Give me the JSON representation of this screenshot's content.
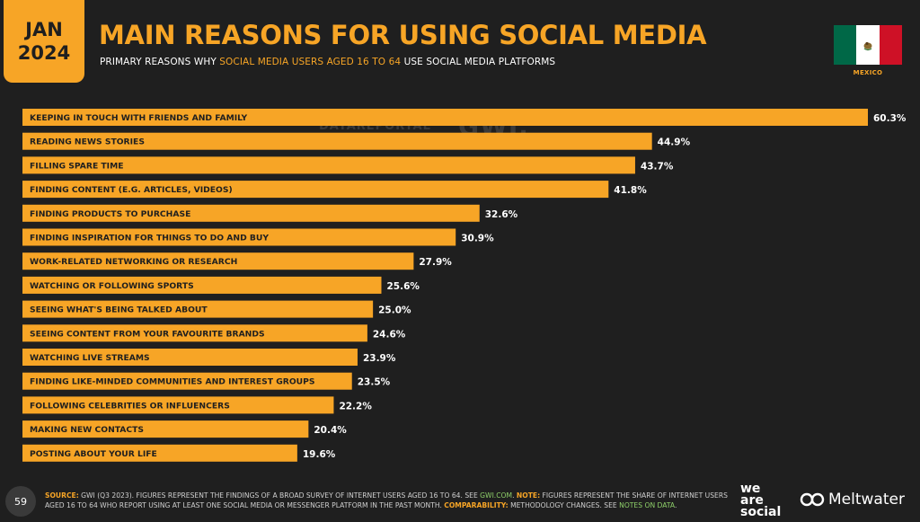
{
  "badge": {
    "month": "JAN",
    "year": "2024"
  },
  "title": "MAIN REASONS FOR USING SOCIAL MEDIA",
  "subtitle": {
    "pre": "PRIMARY REASONS WHY ",
    "highlight": "SOCIAL MEDIA USERS AGED 16 TO 64",
    "post": " USE SOCIAL MEDIA PLATFORMS"
  },
  "flag": {
    "country": "MEXICO",
    "colors": [
      "#006847",
      "#ffffff",
      "#ce1126"
    ]
  },
  "watermark": {
    "left": "DATAREPORTAL",
    "right": "GWI."
  },
  "colors": {
    "bar": "#f7a526",
    "background": "#1f1f1f",
    "accent": "#f7a526"
  },
  "chart_data": {
    "type": "bar",
    "orientation": "horizontal",
    "categories": [
      "KEEPING IN TOUCH WITH FRIENDS AND FAMILY",
      "READING NEWS STORIES",
      "FILLING SPARE TIME",
      "FINDING CONTENT (E.G. ARTICLES, VIDEOS)",
      "FINDING PRODUCTS TO PURCHASE",
      "FINDING INSPIRATION FOR THINGS TO DO AND BUY",
      "WORK-RELATED NETWORKING OR RESEARCH",
      "WATCHING OR FOLLOWING SPORTS",
      "SEEING WHAT'S BEING TALKED ABOUT",
      "SEEING CONTENT FROM YOUR FAVOURITE BRANDS",
      "WATCHING LIVE STREAMS",
      "FINDING LIKE-MINDED COMMUNITIES AND INTEREST GROUPS",
      "FOLLOWING CELEBRITIES OR INFLUENCERS",
      "MAKING NEW CONTACTS",
      "POSTING ABOUT YOUR LIFE"
    ],
    "values": [
      60.3,
      44.9,
      43.7,
      41.8,
      32.6,
      30.9,
      27.9,
      25.6,
      25.0,
      24.6,
      23.9,
      23.5,
      22.2,
      20.4,
      19.6
    ],
    "value_labels": [
      "60.3%",
      "44.9%",
      "43.7%",
      "41.8%",
      "32.6%",
      "30.9%",
      "27.9%",
      "25.6%",
      "25.0%",
      "24.6%",
      "23.9%",
      "23.5%",
      "22.2%",
      "20.4%",
      "19.6%"
    ],
    "unit": "%",
    "xlim": [
      0,
      60.3
    ],
    "grid": false
  },
  "footer": {
    "page_number": "59",
    "source_label": "SOURCE:",
    "source_text": " GWI (Q3 2023). FIGURES REPRESENT THE FINDINGS OF A BROAD SURVEY OF INTERNET USERS AGED 16 TO 64. SEE ",
    "source_link": "GWI.COM",
    "note_label": "NOTE:",
    "note_text": " FIGURES REPRESENT THE SHARE OF INTERNET USERS AGED 16 TO 64 WHO REPORT USING AT LEAST ONE SOCIAL MEDIA OR MESSENGER PLATFORM IN THE PAST MONTH. ",
    "comp_label": "COMPARABILITY:",
    "comp_text": " METHODOLOGY CHANGES. SEE ",
    "comp_link": "NOTES ON DATA",
    "we_are_social": [
      "we",
      "are",
      "social"
    ],
    "meltwater": "Meltwater"
  }
}
